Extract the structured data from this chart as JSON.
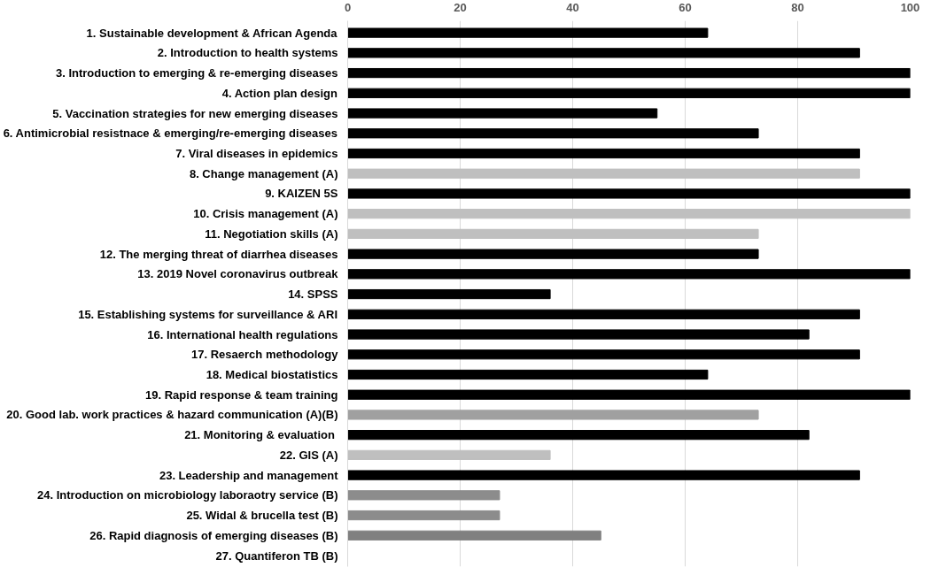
{
  "chart_data": {
    "type": "bar",
    "orientation": "horizontal",
    "categories": [
      "1. Sustainable development & African Agenda",
      "2. Introduction to health systems",
      "3. Introduction to emerging & re-emerging diseases",
      "4. Action plan design",
      "5. Vaccination strategies for new emerging diseases",
      "6. Antimicrobial resistnace & emerging/re-emerging diseases",
      "7. Viral diseases in epidemics",
      "8. Change management (A)",
      "9. KAIZEN 5S",
      "10. Crisis management (A)",
      "11. Negotiation skills (A)",
      "12. The merging threat of diarrhea diseases",
      "13. 2019 Novel coronavirus outbreak",
      "14. SPSS",
      "15. Establishing systems for surveillance & ARI",
      "16. International health regulations",
      "17. Resaerch methodology",
      "18. Medical biostatistics",
      "19. Rapid response & team training",
      "20. Good lab. work practices & hazard communication (A)(B)",
      "21. Monitoring & evaluation ",
      "22. GIS (A)",
      "23. Leadership and management",
      "24. Introduction on microbiology laboraotry service (B)",
      "25. Widal & brucella test (B)",
      "26. Rapid diagnosis of emerging diseases (B)",
      "27. Quantiferon TB (B)"
    ],
    "values": [
      64,
      91,
      100,
      100,
      55,
      73,
      91,
      91,
      100,
      100,
      73,
      73,
      100,
      36,
      91,
      82,
      91,
      64,
      100,
      73,
      82,
      36,
      91,
      27,
      27,
      45,
      null
    ],
    "colors": [
      "#000000",
      "#000000",
      "#000000",
      "#000000",
      "#000000",
      "#000000",
      "#000000",
      "#bfbfbf",
      "#000000",
      "#bfbfbf",
      "#bfbfbf",
      "#000000",
      "#000000",
      "#000000",
      "#000000",
      "#000000",
      "#000000",
      "#000000",
      "#000000",
      "#a0a0a0",
      "#000000",
      "#bfbfbf",
      "#000000",
      "#8c8c8c",
      "#8c8c8c",
      "#808080",
      "#808080"
    ],
    "xlim": [
      0,
      100
    ],
    "xticks": [
      0,
      20,
      40,
      60,
      80,
      100
    ],
    "grid": "x"
  }
}
